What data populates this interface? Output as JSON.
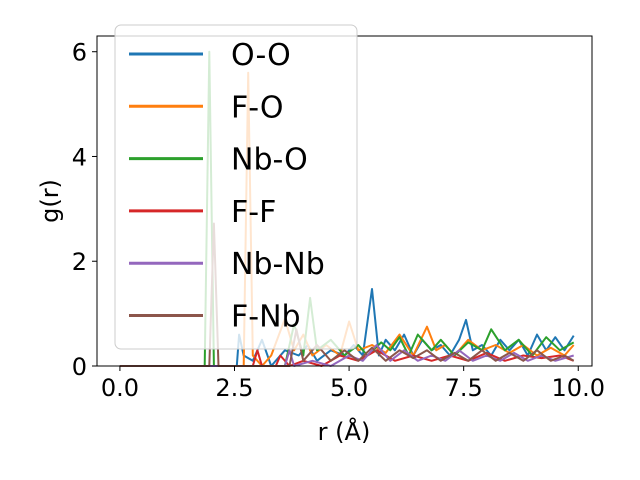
{
  "chart_data": {
    "type": "line",
    "xlabel": "r (Å)",
    "ylabel": "g(r)",
    "xlim": [
      -0.5,
      10.3
    ],
    "ylim": [
      0,
      6.3
    ],
    "xticks": [
      "0.0",
      "2.5",
      "5.0",
      "7.5",
      "10.0"
    ],
    "yticks": [
      "0",
      "2",
      "4",
      "6"
    ],
    "grid": false,
    "legend_position": "top-left",
    "series": [
      {
        "name": "O-O",
        "color": "#1f77b4",
        "points": [
          [
            0,
            0
          ],
          [
            2.55,
            0
          ],
          [
            2.6,
            0.6
          ],
          [
            2.7,
            0.2
          ],
          [
            2.9,
            0.1
          ],
          [
            3.1,
            0.5
          ],
          [
            3.3,
            0
          ],
          [
            3.6,
            0.3
          ],
          [
            3.9,
            0.2
          ],
          [
            4.1,
            0.4
          ],
          [
            4.3,
            0.1
          ],
          [
            4.6,
            0.3
          ],
          [
            4.9,
            0.2
          ],
          [
            5.1,
            0.4
          ],
          [
            5.3,
            0.2
          ],
          [
            5.5,
            1.47
          ],
          [
            5.65,
            0.2
          ],
          [
            5.8,
            0.5
          ],
          [
            6.0,
            0.3
          ],
          [
            6.2,
            0.6
          ],
          [
            6.4,
            0.2
          ],
          [
            6.6,
            0.5
          ],
          [
            6.8,
            0.3
          ],
          [
            7.0,
            0.4
          ],
          [
            7.2,
            0.2
          ],
          [
            7.4,
            0.5
          ],
          [
            7.55,
            0.88
          ],
          [
            7.7,
            0.3
          ],
          [
            7.9,
            0.4
          ],
          [
            8.1,
            0.2
          ],
          [
            8.3,
            0.5
          ],
          [
            8.5,
            0.3
          ],
          [
            8.7,
            0.5
          ],
          [
            8.9,
            0.2
          ],
          [
            9.1,
            0.6
          ],
          [
            9.3,
            0.3
          ],
          [
            9.5,
            0.55
          ],
          [
            9.7,
            0.3
          ],
          [
            9.9,
            0.58
          ]
        ]
      },
      {
        "name": "F-O",
        "color": "#ff7f0e",
        "points": [
          [
            0,
            0
          ],
          [
            2.7,
            0
          ],
          [
            2.8,
            5.6
          ],
          [
            2.9,
            0.2
          ],
          [
            3.1,
            0
          ],
          [
            3.3,
            0.2
          ],
          [
            3.6,
            0.9
          ],
          [
            3.8,
            0.3
          ],
          [
            4.0,
            0.6
          ],
          [
            4.2,
            0.2
          ],
          [
            4.5,
            0.4
          ],
          [
            4.8,
            0.2
          ],
          [
            5.0,
            0.85
          ],
          [
            5.2,
            0.3
          ],
          [
            5.5,
            0.4
          ],
          [
            5.8,
            0.25
          ],
          [
            6.1,
            0.6
          ],
          [
            6.4,
            0.2
          ],
          [
            6.7,
            0.75
          ],
          [
            6.9,
            0.3
          ],
          [
            7.1,
            0.4
          ],
          [
            7.3,
            0.2
          ],
          [
            7.6,
            0.5
          ],
          [
            7.9,
            0.3
          ],
          [
            8.2,
            0.4
          ],
          [
            8.5,
            0.25
          ],
          [
            8.8,
            0.4
          ],
          [
            9.1,
            0.2
          ],
          [
            9.4,
            0.35
          ],
          [
            9.7,
            0.2
          ],
          [
            9.9,
            0.4
          ]
        ]
      },
      {
        "name": "Nb-O",
        "color": "#2ca02c",
        "points": [
          [
            0,
            0
          ],
          [
            1.85,
            0
          ],
          [
            1.95,
            6.0
          ],
          [
            2.05,
            0
          ],
          [
            3.6,
            0
          ],
          [
            3.8,
            0.8
          ],
          [
            4.0,
            0.2
          ],
          [
            4.15,
            1.3
          ],
          [
            4.3,
            0.3
          ],
          [
            4.6,
            0.5
          ],
          [
            4.9,
            0.2
          ],
          [
            5.2,
            0.4
          ],
          [
            5.4,
            0.2
          ],
          [
            5.7,
            0.45
          ],
          [
            5.9,
            0.3
          ],
          [
            6.1,
            0.55
          ],
          [
            6.3,
            0.2
          ],
          [
            6.5,
            0.6
          ],
          [
            6.8,
            0.3
          ],
          [
            7.0,
            0.5
          ],
          [
            7.3,
            0.2
          ],
          [
            7.6,
            0.45
          ],
          [
            7.9,
            0.3
          ],
          [
            8.1,
            0.7
          ],
          [
            8.4,
            0.3
          ],
          [
            8.7,
            0.5
          ],
          [
            9.0,
            0.2
          ],
          [
            9.3,
            0.55
          ],
          [
            9.6,
            0.3
          ],
          [
            9.9,
            0.45
          ]
        ]
      },
      {
        "name": "F-F",
        "color": "#d62728",
        "points": [
          [
            0,
            0
          ],
          [
            2.9,
            0
          ],
          [
            3.0,
            0.3
          ],
          [
            3.1,
            0
          ],
          [
            3.4,
            0
          ],
          [
            3.5,
            0.2
          ],
          [
            3.7,
            0
          ],
          [
            4.0,
            0.1
          ],
          [
            4.4,
            0
          ],
          [
            4.8,
            0.2
          ],
          [
            5.2,
            0.1
          ],
          [
            5.6,
            0.3
          ],
          [
            6.0,
            0.1
          ],
          [
            6.4,
            0.2
          ],
          [
            6.8,
            0.1
          ],
          [
            7.2,
            0.2
          ],
          [
            7.6,
            0.1
          ],
          [
            8.0,
            0.25
          ],
          [
            8.4,
            0.1
          ],
          [
            8.8,
            0.2
          ],
          [
            9.2,
            0.15
          ],
          [
            9.6,
            0.2
          ],
          [
            9.9,
            0.1
          ]
        ]
      },
      {
        "name": "Nb-Nb",
        "color": "#9467bd",
        "points": [
          [
            0,
            0
          ],
          [
            3.6,
            0
          ],
          [
            3.7,
            0.3
          ],
          [
            3.8,
            0
          ],
          [
            4.2,
            0.1
          ],
          [
            4.6,
            0
          ],
          [
            5.0,
            0.2
          ],
          [
            5.3,
            0.1
          ],
          [
            5.6,
            0.4
          ],
          [
            5.9,
            0.1
          ],
          [
            6.2,
            0.3
          ],
          [
            6.5,
            0.1
          ],
          [
            6.8,
            0.2
          ],
          [
            7.1,
            0.1
          ],
          [
            7.4,
            0.3
          ],
          [
            7.7,
            0.1
          ],
          [
            8.0,
            0.2
          ],
          [
            8.3,
            0.1
          ],
          [
            8.6,
            0.25
          ],
          [
            8.9,
            0.1
          ],
          [
            9.2,
            0.2
          ],
          [
            9.5,
            0.1
          ],
          [
            9.9,
            0.2
          ]
        ]
      },
      {
        "name": "F-Nb",
        "color": "#8c564b",
        "points": [
          [
            0,
            0
          ],
          [
            1.95,
            0
          ],
          [
            2.05,
            2.72
          ],
          [
            2.15,
            0
          ],
          [
            3.7,
            0
          ],
          [
            3.85,
            0.7
          ],
          [
            4.0,
            0.1
          ],
          [
            4.3,
            0.4
          ],
          [
            4.6,
            0.1
          ],
          [
            4.9,
            0.3
          ],
          [
            5.2,
            0.1
          ],
          [
            5.5,
            0.35
          ],
          [
            5.8,
            0.1
          ],
          [
            6.1,
            0.3
          ],
          [
            6.4,
            0.15
          ],
          [
            6.7,
            0.3
          ],
          [
            7.0,
            0.1
          ],
          [
            7.3,
            0.25
          ],
          [
            7.6,
            0.1
          ],
          [
            7.9,
            0.3
          ],
          [
            8.2,
            0.1
          ],
          [
            8.5,
            0.25
          ],
          [
            8.8,
            0.1
          ],
          [
            9.1,
            0.3
          ],
          [
            9.4,
            0.1
          ],
          [
            9.7,
            0.2
          ],
          [
            9.9,
            0.1
          ]
        ]
      }
    ]
  }
}
